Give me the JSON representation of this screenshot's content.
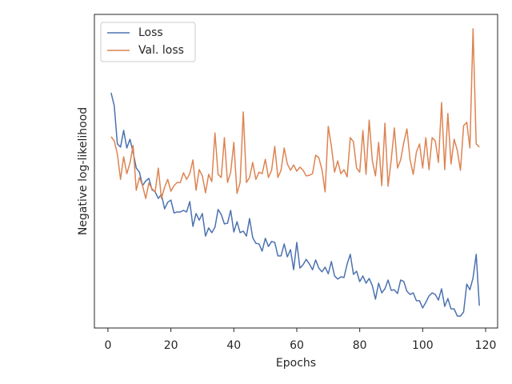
{
  "chart_data": {
    "type": "line",
    "xlabel": "Epochs",
    "ylabel": "Negative log-likelihood",
    "x": [
      1,
      2,
      3,
      4,
      5,
      6,
      7,
      8,
      9,
      10,
      11,
      12,
      13,
      14,
      15,
      16,
      17,
      18,
      19,
      20,
      21,
      22,
      23,
      24,
      25,
      26,
      27,
      28,
      29,
      30,
      31,
      32,
      33,
      34,
      35,
      36,
      37,
      38,
      39,
      40,
      41,
      42,
      43,
      44,
      45,
      46,
      47,
      48,
      49,
      50,
      51,
      52,
      53,
      54,
      55,
      56,
      57,
      58,
      59,
      60,
      61,
      62,
      63,
      64,
      65,
      66,
      67,
      68,
      69,
      70,
      71,
      72,
      73,
      74,
      75,
      76,
      77,
      78,
      79,
      80,
      81,
      82,
      83,
      84,
      85,
      86,
      87,
      88,
      89,
      90,
      91,
      92,
      93,
      94,
      95,
      96,
      97,
      98,
      99,
      100,
      101,
      102,
      103,
      104,
      105,
      106,
      107,
      108,
      109,
      110,
      111,
      112,
      113,
      114,
      115,
      116,
      117,
      118
    ],
    "series": [
      {
        "name": "Loss",
        "color": "#4c72b0",
        "values": [
          75.0,
          70.9,
          58.7,
          57.7,
          63.0,
          57.4,
          60.2,
          56.1,
          51.0,
          49.7,
          45.4,
          46.9,
          47.7,
          44.1,
          43.4,
          41.3,
          42.6,
          38.0,
          40.1,
          40.8,
          36.7,
          37.0,
          37.0,
          37.5,
          37.0,
          40.3,
          32.4,
          36.5,
          34.4,
          36.5,
          29.3,
          31.9,
          30.4,
          32.1,
          37.8,
          36.2,
          33.2,
          33.4,
          37.5,
          30.6,
          33.9,
          30.4,
          30.9,
          29.3,
          34.9,
          28.8,
          27.0,
          26.8,
          24.5,
          28.6,
          26.0,
          27.6,
          27.3,
          23.0,
          23.0,
          26.8,
          22.7,
          25.0,
          18.6,
          27.3,
          19.1,
          20.2,
          21.9,
          20.4,
          18.6,
          21.7,
          19.1,
          17.9,
          19.4,
          17.3,
          21.2,
          16.6,
          15.6,
          16.3,
          16.1,
          20.4,
          23.5,
          17.1,
          18.1,
          14.8,
          16.6,
          14.3,
          15.8,
          13.5,
          9.2,
          14.3,
          11.2,
          12.5,
          15.3,
          12.0,
          12.2,
          11.0,
          15.3,
          14.8,
          11.7,
          10.7,
          11.2,
          8.7,
          8.7,
          6.4,
          8.2,
          10.2,
          11.2,
          10.7,
          8.9,
          12.5,
          6.9,
          9.4,
          6.1,
          6.1,
          3.8,
          3.8,
          5.1,
          14.0,
          12.2,
          16.0,
          23.5,
          7.1
        ]
      },
      {
        "name": "Val. loss",
        "color": "#dd8452",
        "values": [
          61.0,
          59.7,
          55.4,
          47.4,
          54.6,
          49.2,
          52.6,
          58.2,
          43.9,
          48.0,
          45.4,
          41.3,
          46.2,
          44.4,
          43.4,
          51.0,
          41.3,
          44.9,
          47.4,
          43.6,
          45.4,
          46.4,
          46.4,
          49.5,
          47.4,
          49.2,
          53.6,
          43.9,
          50.5,
          48.5,
          43.1,
          49.0,
          46.7,
          62.2,
          49.0,
          48.0,
          60.7,
          46.4,
          49.7,
          59.2,
          42.9,
          46.4,
          68.9,
          46.4,
          48.0,
          52.8,
          47.4,
          49.7,
          49.2,
          53.8,
          48.0,
          50.3,
          57.9,
          48.0,
          50.3,
          57.4,
          52.3,
          50.3,
          52.0,
          50.0,
          51.3,
          50.3,
          48.5,
          48.7,
          49.2,
          55.1,
          54.3,
          50.5,
          43.4,
          64.3,
          57.9,
          49.7,
          53.3,
          49.2,
          50.5,
          48.2,
          60.7,
          59.4,
          51.0,
          49.7,
          63.0,
          49.0,
          66.3,
          53.3,
          48.5,
          59.2,
          45.4,
          65.3,
          45.2,
          53.6,
          63.8,
          51.0,
          53.6,
          59.2,
          63.5,
          53.6,
          49.0,
          56.1,
          58.7,
          51.0,
          60.7,
          50.5,
          60.7,
          59.7,
          52.8,
          71.9,
          50.5,
          68.4,
          52.3,
          60.2,
          56.6,
          50.3,
          64.5,
          65.6,
          57.4,
          95.4,
          58.7,
          57.7
        ]
      }
    ],
    "xlim": [
      -4.3,
      123.8
    ],
    "xticks": [
      0,
      20,
      40,
      60,
      80,
      100,
      120
    ],
    "ylim": [
      0,
      100
    ],
    "legend": "upper left"
  }
}
